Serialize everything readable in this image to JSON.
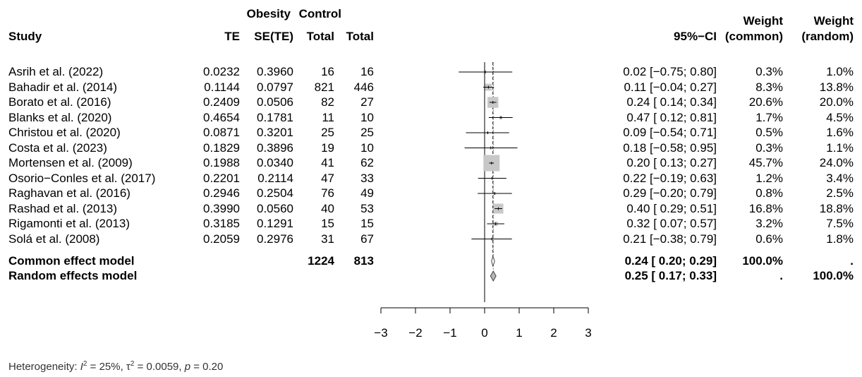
{
  "headers": {
    "group1": "Obesity",
    "group2": "Control",
    "study": "Study",
    "te": "TE",
    "sete": "SE(TE)",
    "total1": "Total",
    "total2": "Total",
    "ci": "95%−CI",
    "weight": "Weight",
    "weight_common": "(common)",
    "weight_random": "(random)"
  },
  "chart_data": {
    "type": "forest",
    "xlim": [
      -3,
      3
    ],
    "xticks": [
      "−3",
      "−2",
      "−1",
      "0",
      "1",
      "2",
      "3"
    ],
    "null_line": 0,
    "common_effect_line": 0.24,
    "random_effect_line": 0.25,
    "studies": [
      {
        "study": "Asrih et al. (2022)",
        "te": "0.0232",
        "sete": "0.3960",
        "total1": "16",
        "total2": "16",
        "est": 0.02,
        "lo": -0.75,
        "hi": 0.8,
        "ci_text": "0.02 [−0.75; 0.80]",
        "w_common": "0.3%",
        "w_random": "1.0%",
        "w": 0.3
      },
      {
        "study": "Bahadir et al. (2014)",
        "te": "0.1144",
        "sete": "0.0797",
        "total1": "821",
        "total2": "446",
        "est": 0.11,
        "lo": -0.04,
        "hi": 0.27,
        "ci_text": "0.11 [−0.04; 0.27]",
        "w_common": "8.3%",
        "w_random": "13.8%",
        "w": 8.3
      },
      {
        "study": "Borato et al. (2016)",
        "te": "0.2409",
        "sete": "0.0506",
        "total1": "82",
        "total2": "27",
        "est": 0.24,
        "lo": 0.14,
        "hi": 0.34,
        "ci_text": "0.24 [ 0.14; 0.34]",
        "w_common": "20.6%",
        "w_random": "20.0%",
        "w": 20.6
      },
      {
        "study": "Blanks et al. (2020)",
        "te": "0.4654",
        "sete": "0.1781",
        "total1": "11",
        "total2": "10",
        "est": 0.47,
        "lo": 0.12,
        "hi": 0.81,
        "ci_text": "0.47 [ 0.12; 0.81]",
        "w_common": "1.7%",
        "w_random": "4.5%",
        "w": 1.7
      },
      {
        "study": "Christou et al. (2020)",
        "te": "0.0871",
        "sete": "0.3201",
        "total1": "25",
        "total2": "25",
        "est": 0.09,
        "lo": -0.54,
        "hi": 0.71,
        "ci_text": "0.09 [−0.54; 0.71]",
        "w_common": "0.5%",
        "w_random": "1.6%",
        "w": 0.5
      },
      {
        "study": "Costa et al. (2023)",
        "te": "0.1829",
        "sete": "0.3896",
        "total1": "19",
        "total2": "10",
        "est": 0.18,
        "lo": -0.58,
        "hi": 0.95,
        "ci_text": "0.18 [−0.58; 0.95]",
        "w_common": "0.3%",
        "w_random": "1.1%",
        "w": 0.3
      },
      {
        "study": "Mortensen et al. (2009)",
        "te": "0.1988",
        "sete": "0.0340",
        "total1": "41",
        "total2": "62",
        "est": 0.2,
        "lo": 0.13,
        "hi": 0.27,
        "ci_text": "0.20 [ 0.13; 0.27]",
        "w_common": "45.7%",
        "w_random": "24.0%",
        "w": 45.7
      },
      {
        "study": "Osorio−Conles et al. (2017)",
        "te": "0.2201",
        "sete": "0.2114",
        "total1": "47",
        "total2": "33",
        "est": 0.22,
        "lo": -0.19,
        "hi": 0.63,
        "ci_text": "0.22 [−0.19; 0.63]",
        "w_common": "1.2%",
        "w_random": "3.4%",
        "w": 1.2
      },
      {
        "study": "Raghavan et al. (2016)",
        "te": "0.2946",
        "sete": "0.2504",
        "total1": "76",
        "total2": "49",
        "est": 0.29,
        "lo": -0.2,
        "hi": 0.79,
        "ci_text": "0.29 [−0.20; 0.79]",
        "w_common": "0.8%",
        "w_random": "2.5%",
        "w": 0.8
      },
      {
        "study": "Rashad et al. (2013)",
        "te": "0.3990",
        "sete": "0.0560",
        "total1": "40",
        "total2": "53",
        "est": 0.4,
        "lo": 0.29,
        "hi": 0.51,
        "ci_text": "0.40 [ 0.29; 0.51]",
        "w_common": "16.8%",
        "w_random": "18.8%",
        "w": 16.8
      },
      {
        "study": "Rigamonti et al. (2013)",
        "te": "0.3185",
        "sete": "0.1291",
        "total1": "15",
        "total2": "15",
        "est": 0.32,
        "lo": 0.07,
        "hi": 0.57,
        "ci_text": "0.32 [ 0.07; 0.57]",
        "w_common": "3.2%",
        "w_random": "7.5%",
        "w": 3.2
      },
      {
        "study": "Solá et al. (2008)",
        "te": "0.2059",
        "sete": "0.2976",
        "total1": "31",
        "total2": "67",
        "est": 0.21,
        "lo": -0.38,
        "hi": 0.79,
        "ci_text": "0.21 [−0.38; 0.79]",
        "w_common": "0.6%",
        "w_random": "1.8%",
        "w": 0.6
      }
    ],
    "summaries": [
      {
        "label": "Common effect model",
        "total1": "1224",
        "total2": "813",
        "est": 0.24,
        "lo": 0.2,
        "hi": 0.29,
        "ci_text": "0.24 [ 0.20; 0.29]",
        "w_common": "100.0%",
        "w_random": "."
      },
      {
        "label": "Random effects model",
        "total1": "",
        "total2": "",
        "est": 0.25,
        "lo": 0.17,
        "hi": 0.33,
        "ci_text": "0.25 [ 0.17; 0.33]",
        "w_common": ".",
        "w_random": "100.0%"
      }
    ]
  },
  "heterogeneity": {
    "prefix": "Heterogeneity: ",
    "i2_symbol": "I",
    "i2_value": " = 25%, ",
    "tau_symbol": "τ",
    "tau_value": " = 0.0059, ",
    "p_symbol": "p",
    "p_value": " = 0.20"
  },
  "colors": {
    "box": "#c8c8c8",
    "line": "#000000",
    "text": "#000000"
  }
}
